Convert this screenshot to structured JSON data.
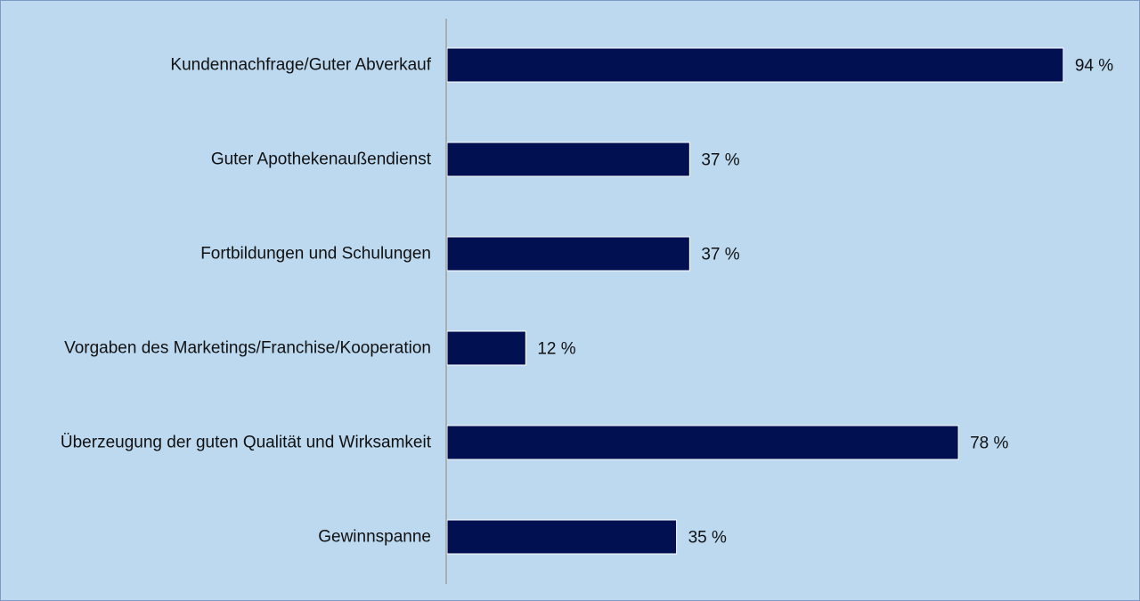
{
  "chart_data": {
    "type": "bar",
    "orientation": "horizontal",
    "categories": [
      "Kundennachfrage/Guter Abverkauf",
      "Guter Apothekenaußendienst",
      "Fortbildungen und Schulungen",
      "Vorgaben des Marketings/Franchise/Kooperation",
      "Überzeugung der guten Qualität und Wirksamkeit",
      "Gewinnspanne"
    ],
    "values": [
      94,
      37,
      37,
      12,
      78,
      35
    ],
    "value_labels": [
      "94 %",
      "37 %",
      "37 %",
      "12 %",
      "78 %",
      "35 %"
    ],
    "xlim": [
      0,
      100
    ],
    "grid": false,
    "legend": "none",
    "colors": {
      "bar": "#001050",
      "bar_border": "#ffffff",
      "background": "#bcd9f0",
      "axis": "#a0a0a0",
      "text": "#111111"
    }
  }
}
